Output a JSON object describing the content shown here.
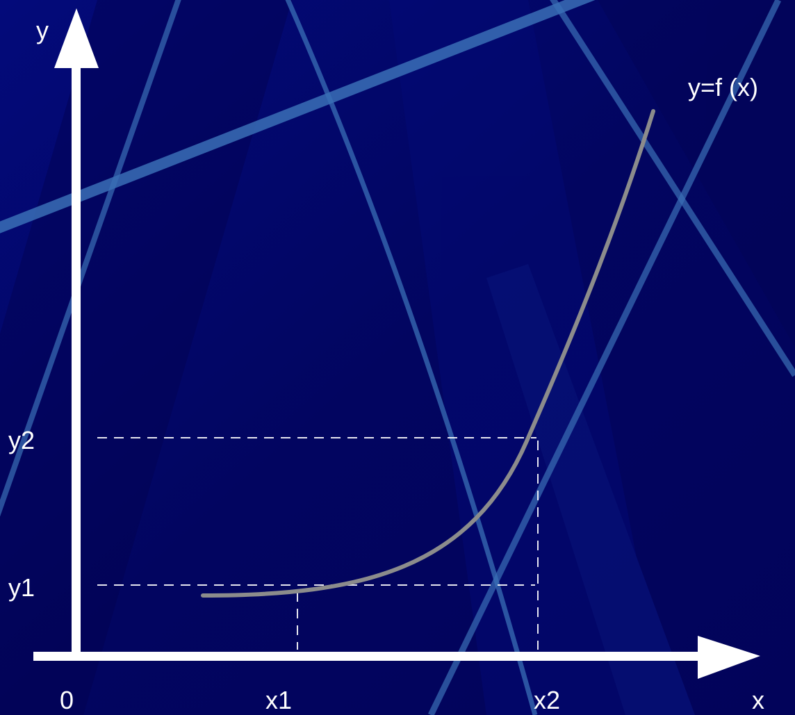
{
  "colors": {
    "background": "#02045e",
    "streak": "#3a6fb6",
    "axis": "#ffffff",
    "curve": "#8c8c8c",
    "guide": "#ffffff"
  },
  "labels": {
    "y_axis": "y",
    "x_axis": "x",
    "origin": "0",
    "curve": "y=f (x)",
    "x1": "x1",
    "x2": "x2",
    "y1": "y1",
    "y2": "y2"
  }
}
